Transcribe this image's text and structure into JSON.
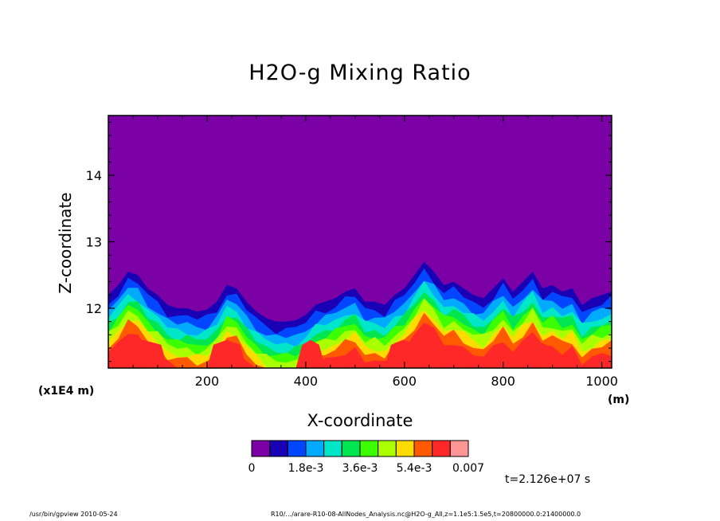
{
  "chart_data": {
    "type": "heatmap",
    "title": "H2O-g Mixing Ratio",
    "xlabel": "X-coordinate",
    "ylabel": "Z-coordinate",
    "x_scale_label": "(x1E4 m)",
    "x_unit_label": "(m)",
    "xlim": [
      0,
      1020
    ],
    "ylim": [
      11.1,
      14.9
    ],
    "x_ticks": [
      200,
      400,
      600,
      800,
      1000
    ],
    "x_tick_labels": [
      "200",
      "400",
      "600",
      "800",
      "1000"
    ],
    "y_ticks": [
      12,
      13,
      14
    ],
    "y_tick_labels": [
      "12",
      "13",
      "14"
    ],
    "colorbar": {
      "colors": [
        "#7b00a5",
        "#1a00b4",
        "#0046ff",
        "#00aaff",
        "#00e6c8",
        "#00e650",
        "#3cff00",
        "#aaff00",
        "#ffdc00",
        "#ff5a00",
        "#ff2828",
        "#ff9696"
      ],
      "tick_labels": [
        "0",
        "1.8e-3",
        "3.6e-3",
        "5.4e-3",
        "0.007"
      ],
      "tick_positions": [
        0,
        3,
        6,
        9,
        12
      ],
      "range": [
        0,
        0.007
      ]
    },
    "time_label": "t=2.126e+07 s",
    "contour_boundaries": {
      "x": [
        0,
        20,
        40,
        60,
        80,
        100,
        120,
        140,
        160,
        180,
        200,
        220,
        240,
        260,
        280,
        300,
        320,
        340,
        360,
        380,
        400,
        420,
        440,
        460,
        480,
        500,
        520,
        540,
        560,
        580,
        600,
        620,
        640,
        660,
        680,
        700,
        720,
        740,
        760,
        780,
        800,
        820,
        840,
        860,
        880,
        900,
        920,
        940,
        960,
        980,
        1000,
        1020
      ],
      "top": [
        12.2,
        12.35,
        12.55,
        12.5,
        12.3,
        12.2,
        12.05,
        12.0,
        12.0,
        11.95,
        11.98,
        12.1,
        12.35,
        12.3,
        12.1,
        11.95,
        11.85,
        11.8,
        11.8,
        11.82,
        11.9,
        12.05,
        12.1,
        12.15,
        12.25,
        12.3,
        12.1,
        12.1,
        12.05,
        12.2,
        12.3,
        12.5,
        12.7,
        12.55,
        12.35,
        12.4,
        12.3,
        12.2,
        12.15,
        12.3,
        12.45,
        12.25,
        12.4,
        12.55,
        12.3,
        12.35,
        12.25,
        12.3,
        12.05,
        12.15,
        12.2,
        12.25
      ]
    }
  },
  "footer": {
    "left": "/usr/bin/gpview   2010-05-24",
    "right": "R10/.../arare-R10-08-AllNodes_Analysis.nc@H2O-g_All,z=1.1e5:1.5e5,t=20800000.0:21400000.0"
  }
}
